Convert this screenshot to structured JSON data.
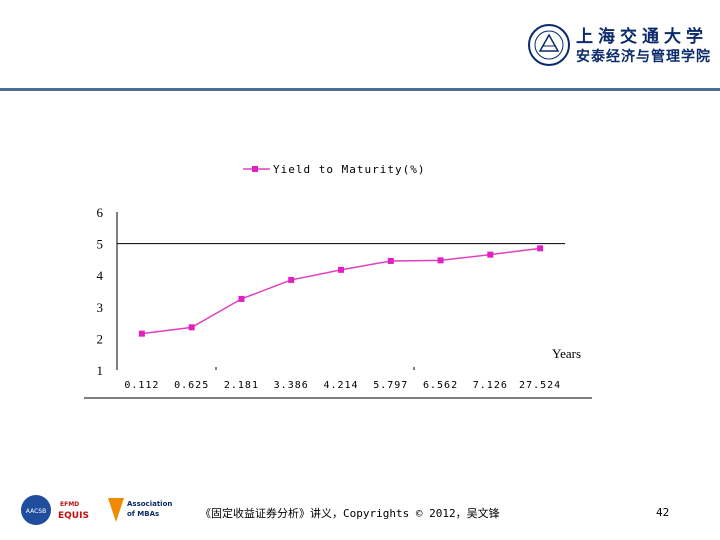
{
  "header": {
    "university_name": "上海交通大学",
    "school_name": "安泰经济与管理学院"
  },
  "footer": {
    "citation": "《固定收益证券分析》讲义，Copyrights © 2012，吴文锋",
    "page_number": "42",
    "accreditations": [
      "AACSB",
      "EFMD EQUIS",
      "Accredited by Association of MBAs"
    ]
  },
  "colors": {
    "header_rule": "#4a6f99",
    "series": "#e040c0",
    "marker": "#e020c0"
  },
  "chart_data": {
    "type": "line",
    "title": "",
    "xlabel": "Years",
    "ylabel": "",
    "categories": [
      "0.112",
      "0.625",
      "2.181",
      "3.386",
      "4.214",
      "5.797",
      "6.562",
      "7.126",
      "27.524"
    ],
    "series": [
      {
        "name": "Yield to Maturity(%)",
        "values": [
          2.15,
          2.35,
          3.25,
          3.85,
          4.17,
          4.45,
          4.47,
          4.65,
          4.85
        ]
      }
    ],
    "ylim": [
      1,
      6
    ],
    "yticks": [
      "1",
      "2",
      "3",
      "4",
      "5",
      "6"
    ],
    "legend_position": "top",
    "grid": "single horizontal line at 5"
  }
}
